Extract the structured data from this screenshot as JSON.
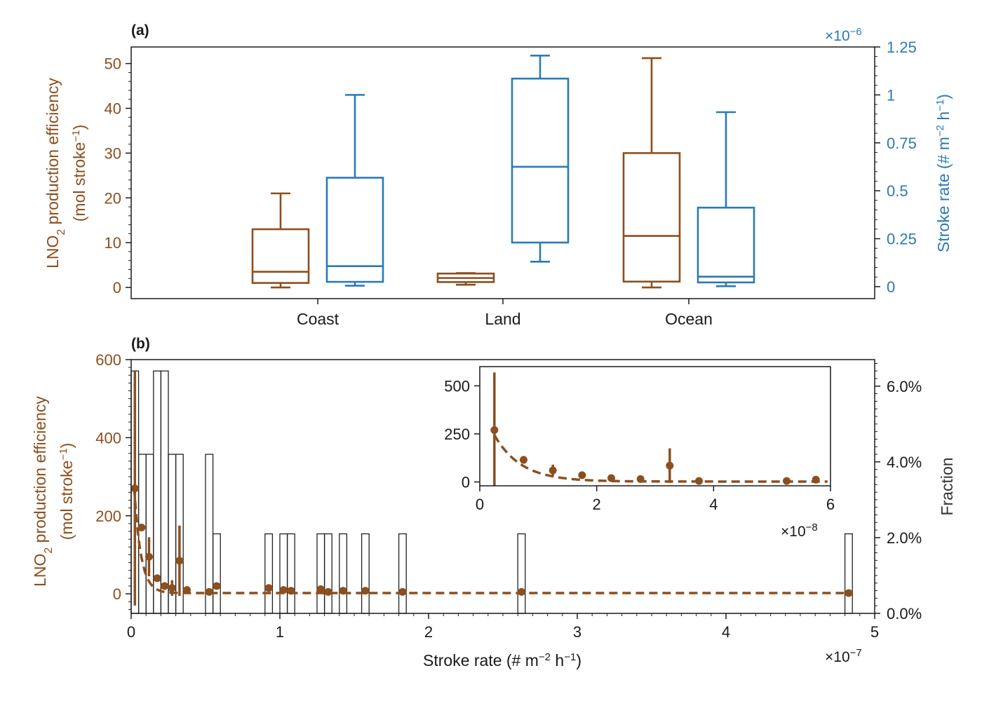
{
  "colors": {
    "brown": "#8c4f1e",
    "blue": "#2a7ab5",
    "black": "#1a1a1a",
    "bar": "#222222"
  },
  "chart_data": [
    {
      "type": "box",
      "panel_label": "(a)",
      "categories": [
        "Coast",
        "Land",
        "Ocean"
      ],
      "left_axis": {
        "label_line1": "LNO",
        "label_sub": "2",
        "label_line1_rest": " production efficiency",
        "label_line2": "(mol stroke",
        "label_line2_sup": "−1",
        "label_line2_end": ")",
        "ylim": [
          -2.5,
          53.7
        ],
        "ticks": [
          0,
          10,
          20,
          30,
          40,
          50
        ],
        "tick_labels": [
          "0",
          "10",
          "20",
          "30",
          "40",
          "50"
        ],
        "color": "brown"
      },
      "right_axis": {
        "label": "Stroke rate (# m",
        "label_sup1": "−2",
        "label_mid": " h",
        "label_sup2": "−1",
        "label_end": ")",
        "exponent_prefix": "×10",
        "exponent_sup": "−6",
        "ylim": [
          -0.0625,
          1.25
        ],
        "ticks": [
          0,
          0.25,
          0.5,
          0.75,
          1.0,
          1.25
        ],
        "tick_labels": [
          "0",
          "0.25",
          "0.5",
          "0.75",
          "1",
          "1.25"
        ],
        "color": "blue"
      },
      "series": [
        {
          "axis": "left",
          "color": "brown",
          "boxes": [
            {
              "category": "Coast",
              "whisker_low": 0.0,
              "q1": 1.0,
              "median": 3.5,
              "q3": 13.0,
              "whisker_high": 21.0
            },
            {
              "category": "Land",
              "whisker_low": 0.6,
              "q1": 1.2,
              "median": 2.1,
              "q3": 3.1,
              "whisker_high": 3.2
            },
            {
              "category": "Ocean",
              "whisker_low": 0.0,
              "q1": 1.3,
              "median": 11.5,
              "q3": 30.0,
              "whisker_high": 51.2
            }
          ]
        },
        {
          "axis": "right",
          "color": "blue",
          "boxes": [
            {
              "category": "Coast",
              "whisker_low": 0.005,
              "q1": 0.025,
              "median": 0.107,
              "q3": 0.568,
              "whisker_high": 1.0
            },
            {
              "category": "Land",
              "whisker_low": 0.13,
              "q1": 0.23,
              "median": 0.625,
              "q3": 1.085,
              "whisker_high": 1.205
            },
            {
              "category": "Ocean",
              "whisker_low": 0.002,
              "q1": 0.022,
              "median": 0.052,
              "q3": 0.412,
              "whisker_high": 0.91
            }
          ]
        }
      ]
    },
    {
      "type": "scatter",
      "panel_label": "(b)",
      "xlabel_pre": "Stroke rate (# m",
      "xlabel_sup1": "−2",
      "xlabel_mid": " h",
      "xlabel_sup2": "−1",
      "xlabel_end": ")",
      "x_exponent_prefix": "×10",
      "x_exponent_sup": "−7",
      "xlim": [
        0,
        5
      ],
      "xticks": [
        0,
        1,
        2,
        3,
        4,
        5
      ],
      "xtick_labels": [
        "0",
        "1",
        "2",
        "3",
        "4",
        "5"
      ],
      "left_axis": {
        "label_line1": "LNO",
        "label_sub": "2",
        "label_line1_rest": " production efficiency",
        "label_line2": "(mol stroke",
        "label_line2_sup": "−1",
        "label_line2_end": ")",
        "ylim": [
          -50,
          600
        ],
        "ticks": [
          0,
          200,
          400,
          600
        ],
        "tick_labels": [
          "0",
          "200",
          "400",
          "600"
        ],
        "color": "brown"
      },
      "right_axis": {
        "label": "Fraction",
        "ylim": [
          0,
          6.7
        ],
        "ticks": [
          0,
          2,
          4,
          6
        ],
        "tick_labels": [
          "0.0%",
          "2.0%",
          "4.0%",
          "6.0%"
        ],
        "color": "black"
      },
      "histogram": {
        "bin_width": 0.05,
        "bins": [
          {
            "x": 0.0,
            "fraction": 6.4
          },
          {
            "x": 0.05,
            "fraction": 4.2
          },
          {
            "x": 0.1,
            "fraction": 4.2
          },
          {
            "x": 0.15,
            "fraction": 6.4
          },
          {
            "x": 0.2,
            "fraction": 6.4
          },
          {
            "x": 0.25,
            "fraction": 4.2
          },
          {
            "x": 0.3,
            "fraction": 4.2
          },
          {
            "x": 0.5,
            "fraction": 4.2
          },
          {
            "x": 0.55,
            "fraction": 2.1
          },
          {
            "x": 0.9,
            "fraction": 2.1
          },
          {
            "x": 1.0,
            "fraction": 2.1
          },
          {
            "x": 1.05,
            "fraction": 2.1
          },
          {
            "x": 1.25,
            "fraction": 2.1
          },
          {
            "x": 1.3,
            "fraction": 2.1
          },
          {
            "x": 1.4,
            "fraction": 2.1
          },
          {
            "x": 1.55,
            "fraction": 2.1
          },
          {
            "x": 1.8,
            "fraction": 2.1
          },
          {
            "x": 2.6,
            "fraction": 2.1
          },
          {
            "x": 4.8,
            "fraction": 2.1
          }
        ]
      },
      "points": [
        {
          "x": 0.025,
          "y": 270,
          "err": 300
        },
        {
          "x": 0.07,
          "y": 170,
          "err": 0
        },
        {
          "x": 0.12,
          "y": 95,
          "err": 50
        },
        {
          "x": 0.175,
          "y": 40,
          "err": 0
        },
        {
          "x": 0.225,
          "y": 20,
          "err": 0
        },
        {
          "x": 0.275,
          "y": 15,
          "err": 20
        },
        {
          "x": 0.325,
          "y": 85,
          "err": 90
        },
        {
          "x": 0.375,
          "y": 10,
          "err": 0
        },
        {
          "x": 0.525,
          "y": 5,
          "err": 0
        },
        {
          "x": 0.575,
          "y": 20,
          "err": 0
        },
        {
          "x": 0.925,
          "y": 15,
          "err": 0
        },
        {
          "x": 1.025,
          "y": 10,
          "err": 0
        },
        {
          "x": 1.075,
          "y": 8,
          "err": 0
        },
        {
          "x": 1.275,
          "y": 12,
          "err": 0
        },
        {
          "x": 1.325,
          "y": 5,
          "err": 0
        },
        {
          "x": 1.425,
          "y": 8,
          "err": 0
        },
        {
          "x": 1.575,
          "y": 8,
          "err": 0
        },
        {
          "x": 1.825,
          "y": 5,
          "err": 0
        },
        {
          "x": 2.625,
          "y": 5,
          "err": 0
        },
        {
          "x": 4.825,
          "y": 2,
          "err": 0
        }
      ],
      "fit": {
        "style": "dashed",
        "form": "exponential decay",
        "y0": 420,
        "rate": 22,
        "offset": 2
      }
    },
    {
      "type": "scatter",
      "role": "inset",
      "x_exponent_prefix": "×10",
      "x_exponent_sup": "−8",
      "xlim": [
        0,
        6
      ],
      "xticks": [
        0,
        2,
        4,
        6
      ],
      "xtick_labels": [
        "0",
        "2",
        "4",
        "6"
      ],
      "ylim": [
        -20,
        600
      ],
      "yticks": [
        0,
        250,
        500
      ],
      "ytick_labels": [
        "0",
        "250",
        "500"
      ],
      "points": [
        {
          "x": 0.25,
          "y": 270,
          "err": 300
        },
        {
          "x": 0.75,
          "y": 115,
          "err": 20
        },
        {
          "x": 1.25,
          "y": 60,
          "err": 30
        },
        {
          "x": 1.75,
          "y": 35,
          "err": 10
        },
        {
          "x": 2.25,
          "y": 20,
          "err": 5
        },
        {
          "x": 2.75,
          "y": 15,
          "err": 0
        },
        {
          "x": 3.25,
          "y": 85,
          "err": 90
        },
        {
          "x": 3.75,
          "y": 5,
          "err": 0
        },
        {
          "x": 5.25,
          "y": 5,
          "err": 0
        },
        {
          "x": 5.75,
          "y": 12,
          "err": 0
        }
      ],
      "fit": {
        "style": "dashed",
        "form": "exponential decay",
        "y0": 420,
        "rate": 2.2,
        "offset": 2
      }
    }
  ]
}
